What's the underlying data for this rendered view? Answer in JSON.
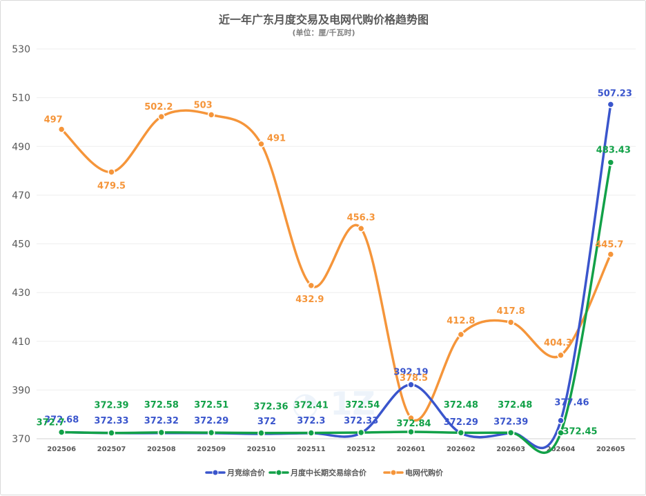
{
  "chart_data": {
    "type": "line",
    "title": "近一年广东月度交易及电网代购价格趋势图",
    "subtitle": "(单位：厘/千瓦时)",
    "categories": [
      "202506",
      "202507",
      "202508",
      "202509",
      "202510",
      "202511",
      "202512",
      "202601",
      "202602",
      "202603",
      "202604",
      "202605"
    ],
    "ylim": [
      370,
      530
    ],
    "yticks": [
      370,
      390,
      410,
      430,
      450,
      470,
      490,
      510,
      530
    ],
    "grid": true,
    "legend_position": "bottom",
    "series": [
      {
        "name": "月竞综合价",
        "color": "#3a55cc",
        "values": [
          372.68,
          372.33,
          372.32,
          372.29,
          372,
          372.3,
          372.33,
          392.19,
          372.29,
          372.39,
          377.46,
          507.23
        ],
        "labels": [
          "372.68",
          "372.33",
          "372.32",
          "372.29",
          "372",
          "372.3",
          "372.33",
          "392.19",
          "372.29",
          "372.39",
          "377.46",
          "507.23"
        ]
      },
      {
        "name": "月度中长期交易综合价",
        "color": "#12a148",
        "values": [
          372.7,
          372.39,
          372.58,
          372.51,
          372.36,
          372.41,
          372.54,
          372.84,
          372.48,
          372.48,
          372.45,
          483.43
        ],
        "labels": [
          "372.7",
          "372.39",
          "372.58",
          "372.51",
          "372.36",
          "372.41",
          "372.54",
          "372.84",
          "372.48",
          "372.48",
          "372.45",
          "483.43"
        ]
      },
      {
        "name": "电网代购价",
        "color": "#f5953a",
        "values": [
          497,
          479.5,
          502.2,
          503,
          491,
          432.9,
          456.3,
          378.5,
          412.8,
          417.8,
          404.3,
          445.7
        ],
        "labels": [
          "497",
          "479.5",
          "502.2",
          "503",
          "491",
          "432.9",
          "456.3",
          "378.5",
          "412.8",
          "417.8",
          "404.3",
          "445.7"
        ]
      }
    ]
  }
}
